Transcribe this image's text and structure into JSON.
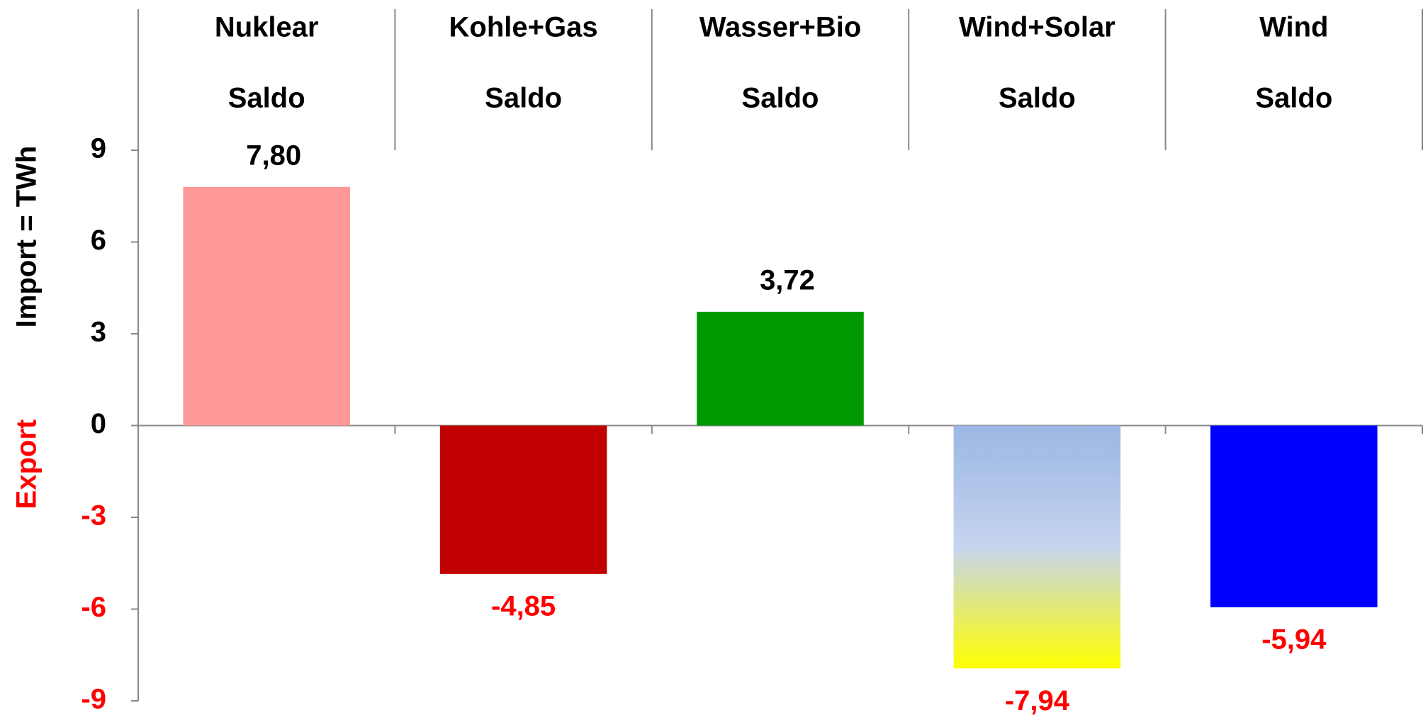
{
  "chart_data": {
    "type": "bar",
    "y_label": "Import =  TWh",
    "y_label_negative": "Export",
    "categories": [
      [
        "Nuklear",
        "Saldo"
      ],
      [
        "Kohle+Gas",
        "Saldo"
      ],
      [
        "Wasser+Bio",
        "Saldo"
      ],
      [
        "Wind+Solar",
        "Saldo"
      ],
      [
        "Wind",
        "Saldo"
      ]
    ],
    "values": [
      7.8,
      -4.85,
      3.72,
      -7.94,
      -5.94
    ],
    "value_labels": [
      "7,80",
      "-4,85",
      "3,72",
      "-7,94",
      "-5,94"
    ],
    "colors": [
      "#ff9999",
      "#c00000",
      "#009900",
      [
        "#9bb7e3",
        "#c6d4ef",
        "#ffff00"
      ],
      "#0000ff"
    ],
    "negative_color": "#ff0000",
    "positive_color": "#000000",
    "ylim": [
      -9,
      9
    ],
    "yticks": [
      -9,
      -6,
      -3,
      0,
      3,
      6,
      9
    ]
  }
}
